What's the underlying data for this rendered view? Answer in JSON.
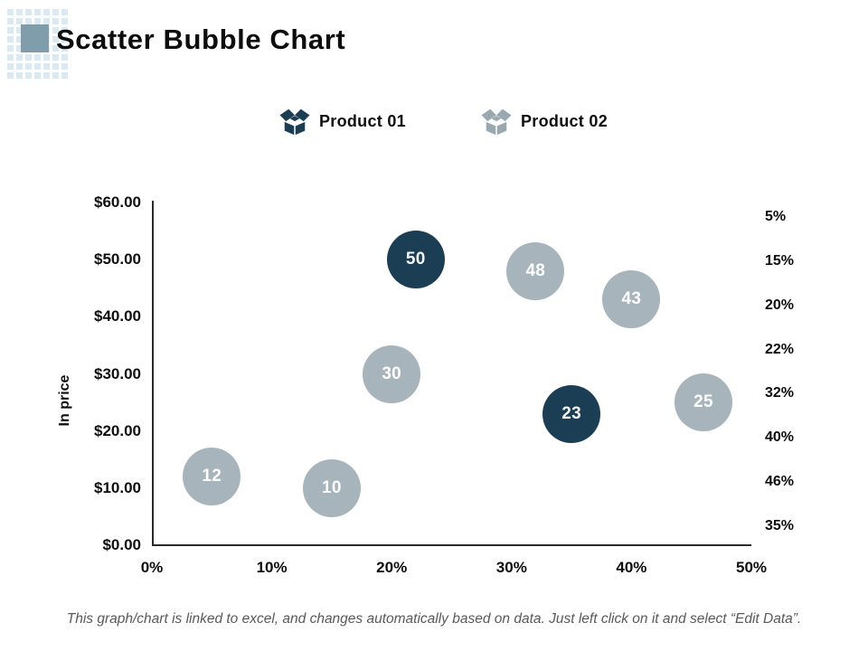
{
  "slide": {
    "title": "Scatter Bubble Chart",
    "footer": "This graph/chart is linked to excel, and changes automatically based on data. Just left click on it and select “Edit Data”."
  },
  "logo": {
    "accent_color": "#7f9dab",
    "grid_color": "#dde9f1"
  },
  "legend": {
    "items": [
      {
        "label": "Product 01",
        "color": "#1b3e55",
        "icon": "open-box-icon"
      },
      {
        "label": "Product 02",
        "color": "#9aa8b0",
        "icon": "open-box-icon"
      }
    ]
  },
  "chart_data": {
    "type": "scatter",
    "subtype": "bubble",
    "title": "",
    "xlabel": "",
    "ylabel": "In price",
    "grid": false,
    "legend_position": "top",
    "xlim": [
      0,
      50
    ],
    "ylim": [
      0,
      60
    ],
    "x_ticks": [
      {
        "label": "0%",
        "value": 0
      },
      {
        "label": "10%",
        "value": 10
      },
      {
        "label": "20%",
        "value": 20
      },
      {
        "label": "30%",
        "value": 30
      },
      {
        "label": "40%",
        "value": 40
      },
      {
        "label": "50%",
        "value": 50
      }
    ],
    "y_ticks": [
      {
        "label": "$60.00",
        "value": 60
      },
      {
        "label": "$50.00",
        "value": 50
      },
      {
        "label": "$40.00",
        "value": 40
      },
      {
        "label": "$30.00",
        "value": 30
      },
      {
        "label": "$20.00",
        "value": 20
      },
      {
        "label": "$10.00",
        "value": 10
      },
      {
        "label": "$0.00",
        "value": 0
      }
    ],
    "right_labels": [
      "5%",
      "15%",
      "20%",
      "22%",
      "32%",
      "40%",
      "46%",
      "35%"
    ],
    "series": [
      {
        "name": "Product 01",
        "color": "#1b3e55",
        "label_color": "#f2f7f9",
        "points": [
          {
            "x": 22,
            "y": 50,
            "label": "50"
          },
          {
            "x": 35,
            "y": 23,
            "label": "23"
          }
        ]
      },
      {
        "name": "Product 02",
        "color": "#a7b4bb",
        "label_color": "#ffffff",
        "points": [
          {
            "x": 5,
            "y": 12,
            "label": "12"
          },
          {
            "x": 15,
            "y": 10,
            "label": "10"
          },
          {
            "x": 20,
            "y": 30,
            "label": "30"
          },
          {
            "x": 32,
            "y": 48,
            "label": "48"
          },
          {
            "x": 40,
            "y": 43,
            "label": "43"
          },
          {
            "x": 46,
            "y": 25,
            "label": "25"
          }
        ]
      }
    ]
  }
}
